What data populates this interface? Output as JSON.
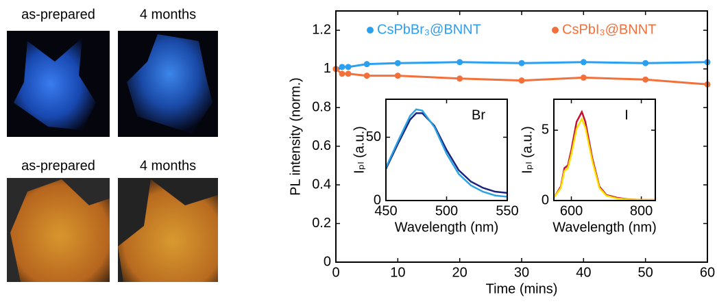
{
  "panels": [
    {
      "label": "as-prepared"
    },
    {
      "label": "4 months"
    },
    {
      "label": "as-prepared"
    },
    {
      "label": "4 months"
    }
  ],
  "chart_data": [
    {
      "type": "line",
      "xlabel": "Time (mins)",
      "ylabel": "PL intensity (norm.)",
      "x": [
        0,
        1,
        2,
        5,
        10,
        20,
        30,
        40,
        50,
        60
      ],
      "xlim": [
        0,
        60
      ],
      "xticks": [
        0,
        10,
        20,
        30,
        40,
        50,
        60
      ],
      "ylim": [
        0,
        1.3
      ],
      "yticks": [
        0,
        0.2,
        0.4,
        0.6,
        0.8,
        1,
        1.2
      ],
      "legend": "top",
      "markers": true,
      "series": [
        {
          "name": "CsPbBr₃@BNNT",
          "color": "#2b9ff0",
          "values": [
            1.0,
            1.01,
            1.01,
            1.025,
            1.03,
            1.035,
            1.03,
            1.035,
            1.03,
            1.035
          ]
        },
        {
          "name": "CsPbI₃@BNNT",
          "color": "#f4703a",
          "values": [
            1.0,
            0.975,
            0.975,
            0.965,
            0.965,
            0.95,
            0.94,
            0.955,
            0.945,
            0.92
          ]
        }
      ]
    },
    {
      "type": "line",
      "xlabel": "Wavelength (nm)",
      "ylabel": "Iₚₗ (a.u.)",
      "annotation": "Br",
      "x": [
        450,
        460,
        470,
        475,
        480,
        490,
        500,
        510,
        520,
        530,
        540,
        550
      ],
      "xlim": [
        450,
        550
      ],
      "xticks": [
        450,
        500,
        550
      ],
      "ylim": [
        0,
        80
      ],
      "yticks": [
        0,
        50
      ],
      "series": [
        {
          "color": "#1a237e",
          "values": [
            25,
            45,
            64,
            69,
            69,
            59,
            40,
            24,
            15,
            10,
            7,
            6
          ]
        },
        {
          "color": "#29a3e6",
          "values": [
            26,
            47,
            67,
            72,
            71,
            58,
            37,
            21,
            12,
            7,
            4,
            3
          ]
        }
      ]
    },
    {
      "type": "line",
      "xlabel": "Wavelength (nm)",
      "ylabel": "Iₚₗ (a.u.)",
      "annotation": "I",
      "x": [
        550,
        570,
        580,
        590,
        600,
        615,
        630,
        640,
        660,
        680,
        700,
        730,
        760,
        800,
        840
      ],
      "xlim": [
        550,
        840
      ],
      "xticks": [
        600,
        800
      ],
      "ylim": [
        0,
        7.2
      ],
      "yticks": [
        0,
        5
      ],
      "series": [
        {
          "color": "#c8102e",
          "values": [
            0.2,
            1.0,
            2.3,
            2.5,
            3.6,
            5.6,
            6.3,
            5.6,
            3.0,
            1.0,
            0.4,
            0.2,
            0.1,
            0.05,
            0.05
          ]
        },
        {
          "color": "#ffe000",
          "values": [
            0.2,
            0.9,
            2.1,
            2.3,
            3.3,
            5.1,
            5.8,
            5.2,
            2.8,
            0.9,
            0.35,
            0.15,
            0.08,
            0.05,
            0.05
          ]
        }
      ]
    }
  ]
}
